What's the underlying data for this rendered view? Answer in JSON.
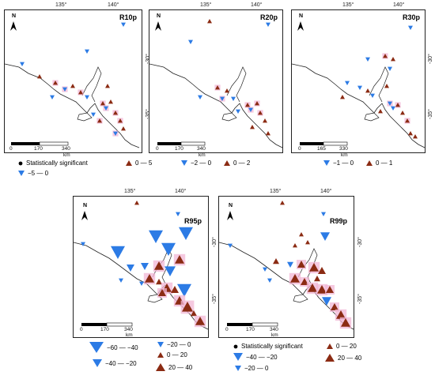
{
  "panels": {
    "r10p": {
      "title": "R10p",
      "lon1": "135°",
      "lon2": "140°",
      "lat1": "-30°",
      "lat2": "-35°",
      "scale": [
        "0",
        "170",
        "340"
      ],
      "unit": "km"
    },
    "r20p": {
      "title": "R20p",
      "lon1": "135°",
      "lon2": "140°",
      "lat1": "-30°",
      "lat2": "-35°",
      "scale": [
        "0",
        "170",
        "340"
      ],
      "unit": "km"
    },
    "r30p": {
      "title": "R30p",
      "lon1": "135°",
      "lon2": "140°",
      "lat1": "-30°",
      "lat2": "-35°",
      "scale": [
        "0",
        "165",
        "330"
      ],
      "unit": "km"
    },
    "r95p": {
      "title": "R95p",
      "lon1": "135°",
      "lon2": "140°",
      "lat1": "-30°",
      "lat2": "-35°",
      "scale": [
        "0",
        "170",
        "340"
      ],
      "unit": "km"
    },
    "r99p": {
      "title": "R99p",
      "lon1": "135°",
      "lon2": "140°",
      "lat1": "-30°",
      "lat2": "-35°",
      "scale": [
        "0",
        "170",
        "340"
      ],
      "unit": "km"
    }
  },
  "north_label": "N",
  "legend_top": {
    "sig": "Statistically significant",
    "r10_pos": "0 — 5",
    "r10_neg": "−5 — 0",
    "r20_neg": "−2 — 0",
    "r20_pos": "0 — 2",
    "r30_neg": "−1 — 0",
    "r30_pos": "0 — 1"
  },
  "legend_r95": {
    "a": "−60 — −40",
    "b": "−40 — −20",
    "c": "−20 — 0",
    "d": "0 — 20",
    "e": "20 — 40"
  },
  "legend_r99": {
    "sig": "Statistically significant",
    "a": "−40 — −20",
    "b": "−20 — 0",
    "c": "0 — 20",
    "d": "20 — 40"
  },
  "colors": {
    "decrease": "#2c7be5",
    "increase": "#8b2b13",
    "significant_halo": "#f2b7d6",
    "coast": "#222222"
  }
}
